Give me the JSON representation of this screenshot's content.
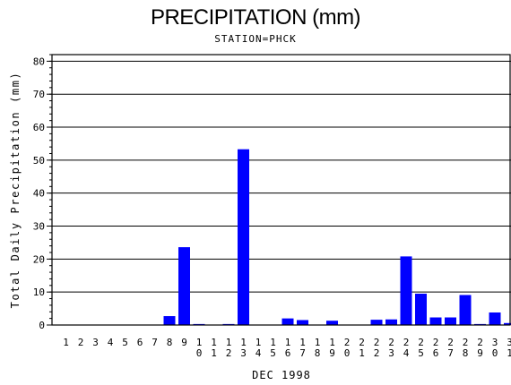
{
  "chart_data": {
    "type": "bar",
    "title": "PRECIPITATION (mm)",
    "subtitle": "STATION=PHCK",
    "xlabel": "DEC 1998",
    "ylabel": "Total Daily Precipitation (mm)",
    "ylim": [
      0,
      82
    ],
    "yticks": [
      0,
      10,
      20,
      30,
      40,
      50,
      60,
      70,
      80
    ],
    "grid": true,
    "bar_color": "#0000ff",
    "categories": [
      "1",
      "2",
      "3",
      "4",
      "5",
      "6",
      "7",
      "8",
      "9",
      "10",
      "11",
      "12",
      "13",
      "14",
      "15",
      "16",
      "17",
      "18",
      "19",
      "20",
      "21",
      "22",
      "23",
      "24",
      "25",
      "26",
      "27",
      "28",
      "29",
      "30",
      "31"
    ],
    "values": [
      0,
      0,
      0,
      0,
      0,
      0,
      0,
      2.7,
      23.6,
      0.3,
      0,
      0.3,
      53.3,
      0,
      0,
      2.0,
      1.5,
      0,
      1.3,
      0,
      0,
      1.6,
      1.7,
      20.8,
      9.5,
      2.3,
      2.3,
      9.1,
      0.3,
      3.8,
      0.6
    ]
  }
}
